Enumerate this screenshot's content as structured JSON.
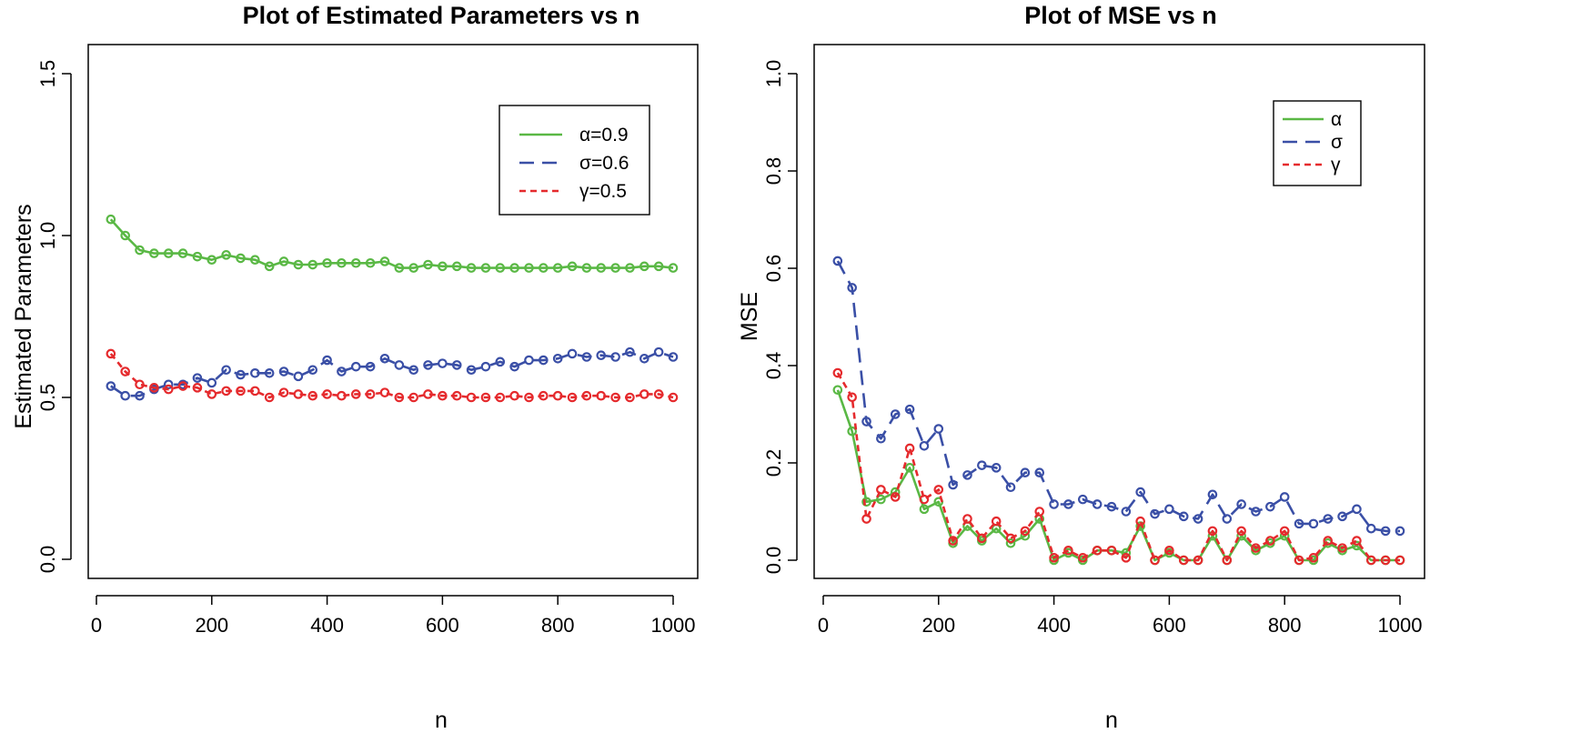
{
  "chart_data": [
    {
      "type": "line",
      "title": "Plot of Estimated Parameters vs n",
      "xlabel": "n",
      "ylabel": "Estimated Parameters",
      "xlim": [
        0,
        1000
      ],
      "ylim": [
        0.0,
        1.5
      ],
      "x_ticks": [
        "0",
        "200",
        "400",
        "600",
        "800",
        "1000"
      ],
      "y_ticks": [
        "0.0",
        "0.5",
        "1.0",
        "1.5"
      ],
      "legend_position": "top-right",
      "x": [
        25,
        50,
        75,
        100,
        125,
        150,
        175,
        200,
        225,
        250,
        275,
        300,
        325,
        350,
        375,
        400,
        425,
        450,
        475,
        500,
        525,
        550,
        575,
        600,
        625,
        650,
        675,
        700,
        725,
        750,
        775,
        800,
        825,
        850,
        875,
        900,
        925,
        950,
        975,
        1000
      ],
      "series": [
        {
          "name": "α=0.9",
          "color": "#5ab845",
          "dash": "solid",
          "values": [
            1.05,
            1.0,
            0.955,
            0.945,
            0.945,
            0.945,
            0.935,
            0.925,
            0.94,
            0.93,
            0.925,
            0.905,
            0.92,
            0.91,
            0.91,
            0.915,
            0.915,
            0.915,
            0.915,
            0.92,
            0.9,
            0.9,
            0.91,
            0.905,
            0.905,
            0.9,
            0.9,
            0.9,
            0.9,
            0.9,
            0.9,
            0.9,
            0.905,
            0.9,
            0.9,
            0.9,
            0.9,
            0.905,
            0.905,
            0.9
          ]
        },
        {
          "name": "σ=0.6",
          "color": "#3a4fa6",
          "dash": "long",
          "values": [
            0.535,
            0.505,
            0.505,
            0.525,
            0.54,
            0.54,
            0.56,
            0.545,
            0.585,
            0.57,
            0.575,
            0.575,
            0.58,
            0.565,
            0.585,
            0.615,
            0.58,
            0.595,
            0.595,
            0.62,
            0.6,
            0.585,
            0.6,
            0.605,
            0.6,
            0.585,
            0.595,
            0.61,
            0.595,
            0.615,
            0.615,
            0.62,
            0.635,
            0.625,
            0.63,
            0.625,
            0.64,
            0.62,
            0.64,
            0.625
          ]
        },
        {
          "name": "γ=0.5",
          "color": "#e52a2d",
          "dash": "short",
          "values": [
            0.635,
            0.58,
            0.54,
            0.53,
            0.525,
            0.535,
            0.53,
            0.51,
            0.52,
            0.52,
            0.52,
            0.5,
            0.515,
            0.51,
            0.505,
            0.51,
            0.505,
            0.51,
            0.51,
            0.515,
            0.5,
            0.5,
            0.51,
            0.505,
            0.505,
            0.5,
            0.5,
            0.5,
            0.505,
            0.5,
            0.505,
            0.505,
            0.5,
            0.505,
            0.505,
            0.5,
            0.5,
            0.51,
            0.51,
            0.5
          ]
        }
      ]
    },
    {
      "type": "line",
      "title": "Plot of MSE vs n",
      "xlabel": "n",
      "ylabel": "MSE",
      "xlim": [
        0,
        1000
      ],
      "ylim": [
        0.0,
        1.0
      ],
      "x_ticks": [
        "0",
        "200",
        "400",
        "600",
        "800",
        "1000"
      ],
      "y_ticks": [
        "0.0",
        "0.2",
        "0.4",
        "0.6",
        "0.8",
        "1.0"
      ],
      "legend_position": "top-right",
      "x": [
        25,
        50,
        75,
        100,
        125,
        150,
        175,
        200,
        225,
        250,
        275,
        300,
        325,
        350,
        375,
        400,
        425,
        450,
        475,
        500,
        525,
        550,
        575,
        600,
        625,
        650,
        675,
        700,
        725,
        750,
        775,
        800,
        825,
        850,
        875,
        900,
        925,
        950,
        975,
        1000
      ],
      "series": [
        {
          "name": "α",
          "color": "#5ab845",
          "dash": "solid",
          "values": [
            0.35,
            0.265,
            0.12,
            0.125,
            0.14,
            0.19,
            0.105,
            0.12,
            0.035,
            0.07,
            0.04,
            0.065,
            0.035,
            0.05,
            0.085,
            0.0,
            0.015,
            0.0,
            0.02,
            0.02,
            0.015,
            0.07,
            0.0,
            0.015,
            0.0,
            0.0,
            0.05,
            0.0,
            0.05,
            0.02,
            0.035,
            0.05,
            0.0,
            0.0,
            0.035,
            0.02,
            0.03,
            0.0,
            0.0,
            0.0
          ]
        },
        {
          "name": "σ",
          "color": "#3a4fa6",
          "dash": "long",
          "values": [
            0.615,
            0.56,
            0.285,
            0.25,
            0.3,
            0.31,
            0.235,
            0.27,
            0.155,
            0.175,
            0.195,
            0.19,
            0.15,
            0.18,
            0.18,
            0.115,
            0.115,
            0.125,
            0.115,
            0.11,
            0.1,
            0.14,
            0.095,
            0.105,
            0.09,
            0.085,
            0.135,
            0.085,
            0.115,
            0.1,
            0.11,
            0.13,
            0.075,
            0.075,
            0.085,
            0.09,
            0.105,
            0.065,
            0.06,
            0.06
          ]
        },
        {
          "name": "γ",
          "color": "#e52a2d",
          "dash": "short",
          "values": [
            0.385,
            0.335,
            0.085,
            0.145,
            0.13,
            0.23,
            0.125,
            0.145,
            0.04,
            0.085,
            0.045,
            0.08,
            0.045,
            0.06,
            0.1,
            0.005,
            0.02,
            0.005,
            0.02,
            0.02,
            0.005,
            0.08,
            0.0,
            0.02,
            0.0,
            0.0,
            0.06,
            0.0,
            0.06,
            0.025,
            0.04,
            0.06,
            0.0,
            0.005,
            0.04,
            0.025,
            0.04,
            0.0,
            0.0,
            0.0
          ]
        }
      ]
    }
  ]
}
